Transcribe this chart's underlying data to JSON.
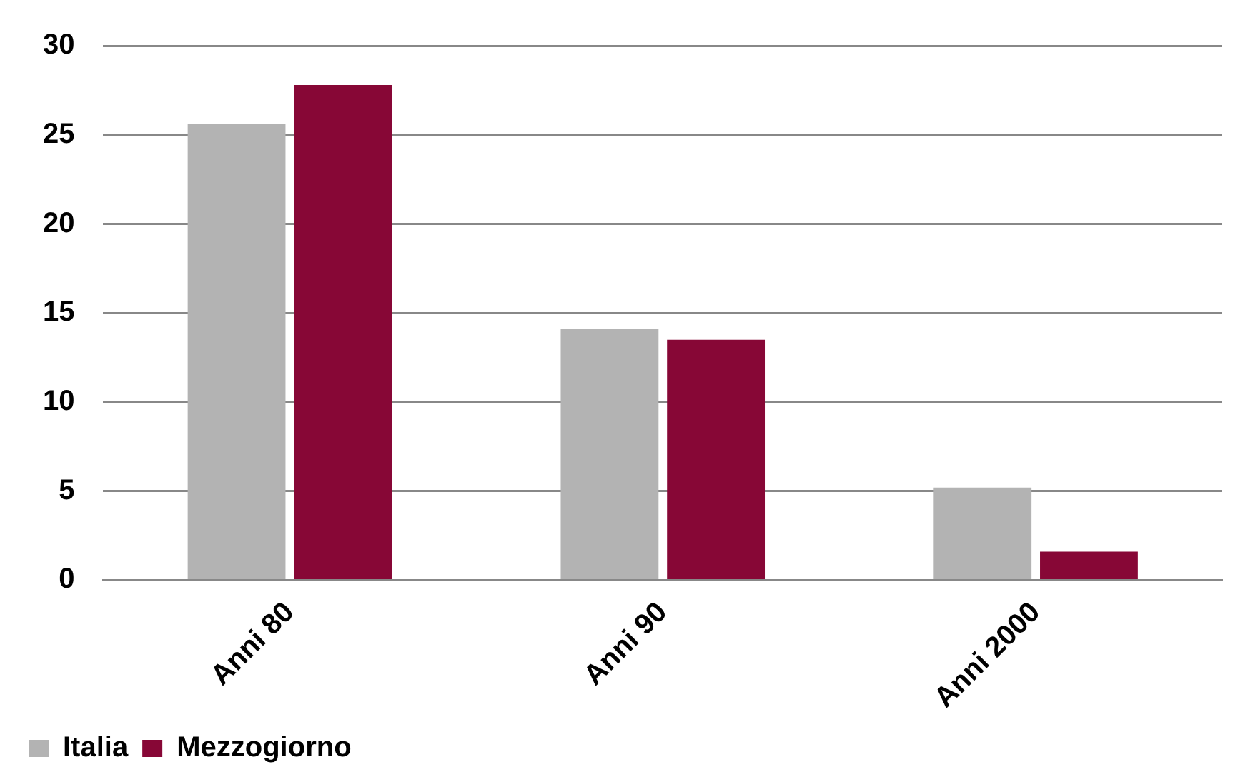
{
  "chart_data": {
    "type": "bar",
    "categories": [
      "Anni 80",
      "Anni 90",
      "Anni 2000"
    ],
    "series": [
      {
        "name": "Italia",
        "color": "#b3b3b3",
        "values": [
          25.6,
          14.1,
          5.2
        ]
      },
      {
        "name": "Mezzogiorno",
        "color": "#870736",
        "values": [
          27.8,
          13.5,
          1.6
        ]
      }
    ],
    "ylim": [
      0,
      30
    ],
    "yticks": [
      0,
      5,
      10,
      15,
      20,
      25,
      30
    ],
    "grid": "y",
    "legend": "bottom left"
  }
}
